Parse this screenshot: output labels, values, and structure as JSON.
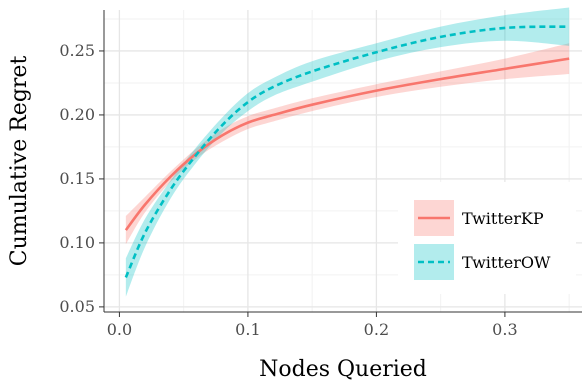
{
  "chart_data": {
    "type": "line",
    "xlabel": "Nodes Queried",
    "ylabel": "Cumulative Regret",
    "xlim": [
      -0.012,
      0.36
    ],
    "ylim": [
      0.046,
      0.282
    ],
    "xticks": [
      0.0,
      0.1,
      0.2,
      0.3
    ],
    "xtick_labels": [
      "0.0",
      "0.1",
      "0.2",
      "0.3"
    ],
    "yticks": [
      0.05,
      0.1,
      0.15,
      0.2,
      0.25
    ],
    "ytick_labels": [
      "0.05",
      "0.10",
      "0.15",
      "0.20",
      "0.25"
    ],
    "grid": true,
    "legend_position": "bottom-right",
    "series": [
      {
        "name": "TwitterKP",
        "color": "#F8766D",
        "linestyle": "solid",
        "x": [
          0.005,
          0.02,
          0.04,
          0.06,
          0.08,
          0.1,
          0.12,
          0.15,
          0.2,
          0.25,
          0.3,
          0.35
        ],
        "y": [
          0.11,
          0.13,
          0.152,
          0.17,
          0.184,
          0.194,
          0.2,
          0.208,
          0.219,
          0.228,
          0.236,
          0.244
        ],
        "lower": [
          0.099,
          0.124,
          0.148,
          0.166,
          0.179,
          0.189,
          0.195,
          0.203,
          0.214,
          0.222,
          0.228,
          0.232
        ],
        "upper": [
          0.121,
          0.136,
          0.156,
          0.174,
          0.189,
          0.199,
          0.205,
          0.213,
          0.224,
          0.234,
          0.244,
          0.256
        ]
      },
      {
        "name": "TwitterOW",
        "color": "#00BFC4",
        "linestyle": "dashed",
        "x": [
          0.005,
          0.02,
          0.04,
          0.06,
          0.08,
          0.1,
          0.12,
          0.15,
          0.2,
          0.25,
          0.3,
          0.35
        ],
        "y": [
          0.073,
          0.108,
          0.142,
          0.169,
          0.192,
          0.21,
          0.222,
          0.234,
          0.249,
          0.261,
          0.268,
          0.269
        ],
        "lower": [
          0.058,
          0.097,
          0.135,
          0.163,
          0.186,
          0.203,
          0.215,
          0.226,
          0.242,
          0.253,
          0.258,
          0.254
        ],
        "upper": [
          0.088,
          0.119,
          0.149,
          0.175,
          0.198,
          0.217,
          0.229,
          0.242,
          0.256,
          0.269,
          0.278,
          0.284
        ]
      }
    ]
  }
}
